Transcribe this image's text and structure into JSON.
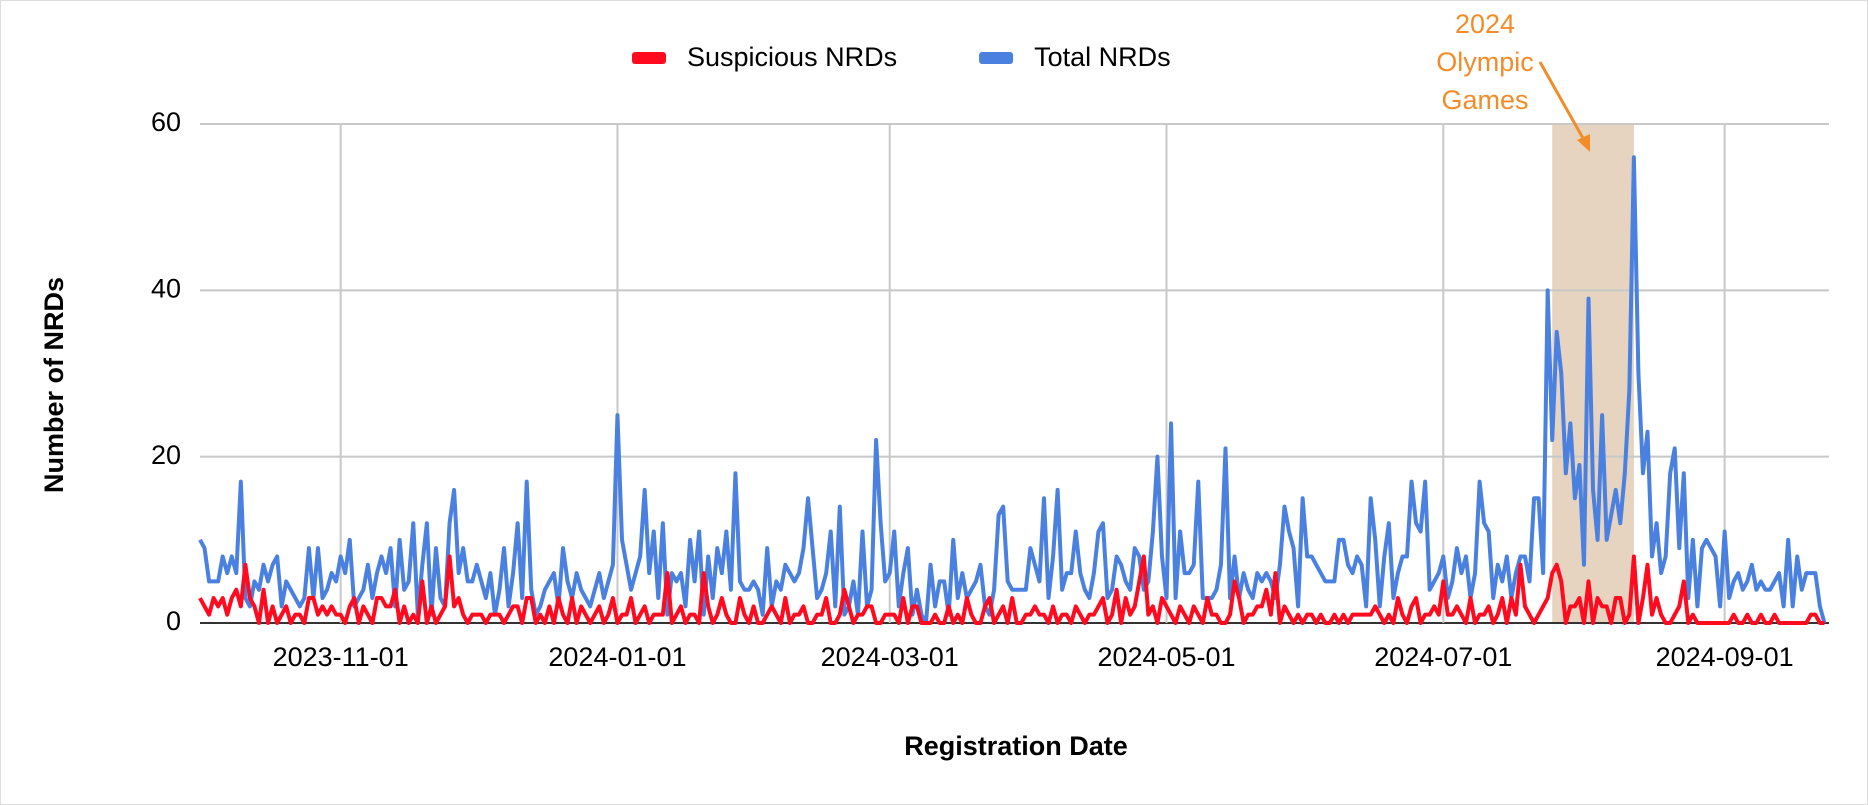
{
  "chart_data": {
    "type": "line",
    "y_label": "Number of NRDs",
    "x_label": "Registration Date",
    "legend": "top",
    "grid": true,
    "xlim": [
      "2023-10-01",
      "2024-09-24"
    ],
    "xticks": [
      "2023-11-01",
      "2024-01-01",
      "2024-03-01",
      "2024-05-01",
      "2024-07-01",
      "2024-09-01"
    ],
    "ylim": [
      0,
      60
    ],
    "yticks": [
      0,
      20,
      40,
      60
    ],
    "highlight": {
      "start": "2024-07-25",
      "end": "2024-08-12",
      "color": "#e6d3c0"
    },
    "annotation": {
      "lines": [
        "2024",
        "Olympic",
        "Games"
      ],
      "color": "#f28c28"
    },
    "x": [
      "2023-10-01",
      "2023-10-02",
      "2023-10-03",
      "2023-10-04",
      "2023-10-05",
      "2023-10-06",
      "2023-10-07",
      "2023-10-08",
      "2023-10-09",
      "2023-10-10",
      "2023-10-11",
      "2023-10-12",
      "2023-10-13",
      "2023-10-14",
      "2023-10-15",
      "2023-10-16",
      "2023-10-17",
      "2023-10-18",
      "2023-10-19",
      "2023-10-20",
      "2023-10-21",
      "2023-10-22",
      "2023-10-23",
      "2023-10-24",
      "2023-10-25",
      "2023-10-26",
      "2023-10-27",
      "2023-10-28",
      "2023-10-29",
      "2023-10-30",
      "2023-10-31",
      "2023-11-01",
      "2023-11-02",
      "2023-11-03",
      "2023-11-04",
      "2023-11-05",
      "2023-11-06",
      "2023-11-07",
      "2023-11-08",
      "2023-11-09",
      "2023-11-10",
      "2023-11-11",
      "2023-11-12",
      "2023-11-13",
      "2023-11-14",
      "2023-11-15",
      "2023-11-16",
      "2023-11-17",
      "2023-11-18",
      "2023-11-19",
      "2023-11-20",
      "2023-11-21",
      "2023-11-22",
      "2023-11-23",
      "2023-11-24",
      "2023-11-25",
      "2023-11-26",
      "2023-11-27",
      "2023-11-28",
      "2023-11-29",
      "2023-11-30",
      "2023-12-01",
      "2023-12-02",
      "2023-12-03",
      "2023-12-04",
      "2023-12-05",
      "2023-12-06",
      "2023-12-07",
      "2023-12-08",
      "2023-12-09",
      "2023-12-10",
      "2023-12-11",
      "2023-12-12",
      "2023-12-13",
      "2023-12-14",
      "2023-12-15",
      "2023-12-16",
      "2023-12-17",
      "2023-12-18",
      "2023-12-19",
      "2023-12-20",
      "2023-12-21",
      "2023-12-22",
      "2023-12-23",
      "2023-12-24",
      "2023-12-25",
      "2023-12-26",
      "2023-12-27",
      "2023-12-28",
      "2023-12-29",
      "2023-12-30",
      "2023-12-31",
      "2024-01-01",
      "2024-01-02",
      "2024-01-03",
      "2024-01-04",
      "2024-01-05",
      "2024-01-06",
      "2024-01-07",
      "2024-01-08",
      "2024-01-09",
      "2024-01-10",
      "2024-01-11",
      "2024-01-12",
      "2024-01-13",
      "2024-01-14",
      "2024-01-15",
      "2024-01-16",
      "2024-01-17",
      "2024-01-18",
      "2024-01-19",
      "2024-01-20",
      "2024-01-21",
      "2024-01-22",
      "2024-01-23",
      "2024-01-24",
      "2024-01-25",
      "2024-01-26",
      "2024-01-27",
      "2024-01-28",
      "2024-01-29",
      "2024-01-30",
      "2024-01-31",
      "2024-02-01",
      "2024-02-02",
      "2024-02-03",
      "2024-02-04",
      "2024-02-05",
      "2024-02-06",
      "2024-02-07",
      "2024-02-08",
      "2024-02-09",
      "2024-02-10",
      "2024-02-11",
      "2024-02-12",
      "2024-02-13",
      "2024-02-14",
      "2024-02-15",
      "2024-02-16",
      "2024-02-17",
      "2024-02-18",
      "2024-02-19",
      "2024-02-20",
      "2024-02-21",
      "2024-02-22",
      "2024-02-23",
      "2024-02-24",
      "2024-02-25",
      "2024-02-26",
      "2024-02-27",
      "2024-02-28",
      "2024-02-29",
      "2024-03-01",
      "2024-03-02",
      "2024-03-03",
      "2024-03-04",
      "2024-03-05",
      "2024-03-06",
      "2024-03-07",
      "2024-03-08",
      "2024-03-09",
      "2024-03-10",
      "2024-03-11",
      "2024-03-12",
      "2024-03-13",
      "2024-03-14",
      "2024-03-15",
      "2024-03-16",
      "2024-03-17",
      "2024-03-18",
      "2024-03-19",
      "2024-03-20",
      "2024-03-21",
      "2024-03-22",
      "2024-03-23",
      "2024-03-24",
      "2024-03-25",
      "2024-03-26",
      "2024-03-27",
      "2024-03-28",
      "2024-03-29",
      "2024-03-30",
      "2024-03-31",
      "2024-04-01",
      "2024-04-02",
      "2024-04-03",
      "2024-04-04",
      "2024-04-05",
      "2024-04-06",
      "2024-04-07",
      "2024-04-08",
      "2024-04-09",
      "2024-04-10",
      "2024-04-11",
      "2024-04-12",
      "2024-04-13",
      "2024-04-14",
      "2024-04-15",
      "2024-04-16",
      "2024-04-17",
      "2024-04-18",
      "2024-04-19",
      "2024-04-20",
      "2024-04-21",
      "2024-04-22",
      "2024-04-23",
      "2024-04-24",
      "2024-04-25",
      "2024-04-26",
      "2024-04-27",
      "2024-04-28",
      "2024-04-29",
      "2024-04-30",
      "2024-05-01",
      "2024-05-02",
      "2024-05-03",
      "2024-05-04",
      "2024-05-05",
      "2024-05-06",
      "2024-05-07",
      "2024-05-08",
      "2024-05-09",
      "2024-05-10",
      "2024-05-11",
      "2024-05-12",
      "2024-05-13",
      "2024-05-14",
      "2024-05-15",
      "2024-05-16",
      "2024-05-17",
      "2024-05-18",
      "2024-05-19",
      "2024-05-20",
      "2024-05-21",
      "2024-05-22",
      "2024-05-23",
      "2024-05-24",
      "2024-05-25",
      "2024-05-26",
      "2024-05-27",
      "2024-05-28",
      "2024-05-29",
      "2024-05-30",
      "2024-05-31",
      "2024-06-01",
      "2024-06-02",
      "2024-06-03",
      "2024-06-04",
      "2024-06-05",
      "2024-06-06",
      "2024-06-07",
      "2024-06-08",
      "2024-06-09",
      "2024-06-10",
      "2024-06-11",
      "2024-06-12",
      "2024-06-13",
      "2024-06-14",
      "2024-06-15",
      "2024-06-16",
      "2024-06-17",
      "2024-06-18",
      "2024-06-19",
      "2024-06-20",
      "2024-06-21",
      "2024-06-22",
      "2024-06-23",
      "2024-06-24",
      "2024-06-25",
      "2024-06-26",
      "2024-06-27",
      "2024-06-28",
      "2024-06-29",
      "2024-06-30",
      "2024-07-01",
      "2024-07-02",
      "2024-07-03",
      "2024-07-04",
      "2024-07-05",
      "2024-07-06",
      "2024-07-07",
      "2024-07-08",
      "2024-07-09",
      "2024-07-10",
      "2024-07-11",
      "2024-07-12",
      "2024-07-13",
      "2024-07-14",
      "2024-07-15",
      "2024-07-16",
      "2024-07-17",
      "2024-07-18",
      "2024-07-19",
      "2024-07-20",
      "2024-07-21",
      "2024-07-22",
      "2024-07-23",
      "2024-07-24",
      "2024-07-25",
      "2024-07-26",
      "2024-07-27",
      "2024-07-28",
      "2024-07-29",
      "2024-07-30",
      "2024-07-31",
      "2024-08-01",
      "2024-08-02",
      "2024-08-03",
      "2024-08-04",
      "2024-08-05",
      "2024-08-06",
      "2024-08-07",
      "2024-08-08",
      "2024-08-09",
      "2024-08-10",
      "2024-08-11",
      "2024-08-12",
      "2024-08-13",
      "2024-08-14",
      "2024-08-15",
      "2024-08-16",
      "2024-08-17",
      "2024-08-18",
      "2024-08-19",
      "2024-08-20",
      "2024-08-21",
      "2024-08-22",
      "2024-08-23",
      "2024-08-24",
      "2024-08-25",
      "2024-08-26",
      "2024-08-27",
      "2024-08-28",
      "2024-08-29",
      "2024-08-30",
      "2024-08-31",
      "2024-09-01",
      "2024-09-02",
      "2024-09-03",
      "2024-09-04",
      "2024-09-05",
      "2024-09-06",
      "2024-09-07",
      "2024-09-08",
      "2024-09-09",
      "2024-09-10",
      "2024-09-11",
      "2024-09-12",
      "2024-09-13",
      "2024-09-14",
      "2024-09-15",
      "2024-09-16",
      "2024-09-17",
      "2024-09-18",
      "2024-09-19",
      "2024-09-20",
      "2024-09-21",
      "2024-09-22",
      "2024-09-23"
    ],
    "series": [
      {
        "name": "Suspicious NRDs",
        "color": "#ff0a1e",
        "values": [
          3,
          2,
          1,
          3,
          2,
          3,
          1,
          3,
          4,
          2,
          7,
          3,
          2,
          0,
          4,
          0,
          2,
          0,
          1,
          2,
          0,
          1,
          1,
          0,
          3,
          3,
          1,
          2,
          1,
          2,
          1,
          1,
          0,
          2,
          3,
          0,
          2,
          1,
          0,
          3,
          3,
          2,
          2,
          4,
          0,
          2,
          0,
          1,
          0,
          5,
          0,
          2,
          0,
          1,
          2,
          8,
          2,
          3,
          1,
          0,
          1,
          1,
          1,
          0,
          1,
          1,
          1,
          0,
          1,
          2,
          2,
          0,
          3,
          3,
          0,
          1,
          0,
          2,
          0,
          3,
          1,
          0,
          3,
          0,
          2,
          1,
          0,
          1,
          2,
          0,
          1,
          3,
          0,
          1,
          1,
          3,
          0,
          1,
          2,
          0,
          1,
          1,
          1,
          6,
          0,
          1,
          2,
          0,
          1,
          1,
          0,
          6,
          2,
          0,
          1,
          3,
          1,
          0,
          0,
          3,
          1,
          0,
          2,
          0,
          0,
          1,
          2,
          1,
          0,
          3,
          0,
          1,
          1,
          2,
          0,
          0,
          1,
          1,
          3,
          0,
          0,
          1,
          4,
          2,
          0,
          1,
          1,
          2,
          2,
          0,
          0,
          1,
          1,
          1,
          0,
          3,
          0,
          2,
          2,
          0,
          0,
          0,
          1,
          0,
          0,
          2,
          0,
          1,
          0,
          3,
          1,
          0,
          0,
          2,
          3,
          0,
          1,
          2,
          0,
          3,
          0,
          0,
          1,
          1,
          2,
          1,
          1,
          0,
          2,
          0,
          1,
          1,
          0,
          2,
          1,
          0,
          1,
          1,
          2,
          3,
          0,
          1,
          4,
          0,
          3,
          1,
          2,
          5,
          8,
          1,
          2,
          0,
          3,
          2,
          1,
          0,
          2,
          1,
          0,
          2,
          1,
          0,
          3,
          1,
          1,
          0,
          0,
          1,
          5,
          3,
          0,
          1,
          1,
          2,
          2,
          4,
          1,
          6,
          0,
          2,
          1,
          0,
          1,
          0,
          1,
          1,
          0,
          1,
          0,
          0,
          1,
          0,
          1,
          0,
          1,
          1,
          1,
          1,
          1,
          2,
          1,
          0,
          1,
          0,
          3,
          1,
          0,
          2,
          3,
          0,
          1,
          1,
          2,
          1,
          5,
          1,
          1,
          2,
          1,
          0,
          3,
          0,
          1,
          1,
          2,
          0,
          1,
          3,
          0,
          3,
          1,
          7,
          2,
          1,
          0,
          1,
          2,
          3,
          6,
          7,
          5,
          0,
          2,
          2,
          3,
          0,
          5,
          0,
          3,
          2,
          2,
          0,
          3,
          3,
          0,
          1,
          8,
          0,
          3,
          7,
          1,
          3,
          1,
          0,
          0,
          1,
          2,
          5,
          0,
          1,
          0,
          0,
          0,
          0,
          0,
          0,
          0,
          0,
          1,
          0,
          0,
          1,
          0,
          0,
          1,
          0,
          0,
          1,
          0,
          0,
          0,
          0,
          0,
          0,
          0,
          1,
          1,
          0,
          0
        ]
      },
      {
        "name": "Total NRDs",
        "color": "#4a80e0",
        "values": [
          10,
          9,
          5,
          5,
          5,
          8,
          6,
          8,
          6,
          17,
          3,
          2,
          5,
          4,
          7,
          5,
          7,
          8,
          2,
          5,
          4,
          3,
          2,
          3,
          9,
          3,
          9,
          3,
          4,
          6,
          5,
          8,
          6,
          10,
          2,
          3,
          4,
          7,
          3,
          6,
          8,
          6,
          9,
          2,
          10,
          4,
          5,
          12,
          1,
          7,
          12,
          1,
          9,
          3,
          2,
          12,
          16,
          6,
          9,
          5,
          5,
          7,
          5,
          3,
          6,
          1,
          4,
          9,
          2,
          6,
          12,
          3,
          17,
          4,
          1,
          2,
          4,
          5,
          6,
          2,
          9,
          5,
          3,
          6,
          4,
          3,
          2,
          4,
          6,
          3,
          5,
          7,
          25,
          10,
          7,
          4,
          6,
          8,
          16,
          6,
          11,
          3,
          12,
          1,
          6,
          5,
          6,
          2,
          10,
          5,
          11,
          1,
          8,
          3,
          9,
          6,
          11,
          4,
          18,
          5,
          4,
          4,
          5,
          4,
          1,
          9,
          2,
          5,
          4,
          7,
          6,
          5,
          6,
          9,
          15,
          9,
          3,
          4,
          6,
          11,
          2,
          14,
          1,
          2,
          5,
          1,
          11,
          2,
          4,
          22,
          12,
          5,
          6,
          11,
          2,
          6,
          9,
          1,
          4,
          1,
          0,
          7,
          2,
          5,
          5,
          1,
          10,
          3,
          6,
          3,
          4,
          5,
          7,
          2,
          1,
          4,
          13,
          14,
          5,
          4,
          4,
          4,
          4,
          9,
          7,
          5,
          15,
          3,
          8,
          16,
          4,
          6,
          6,
          11,
          6,
          4,
          3,
          6,
          11,
          12,
          3,
          4,
          8,
          7,
          5,
          4,
          9,
          8,
          4,
          5,
          11,
          20,
          8,
          3,
          24,
          3,
          11,
          6,
          6,
          7,
          17,
          3,
          3,
          3,
          4,
          7,
          21,
          3,
          8,
          3,
          6,
          4,
          3,
          6,
          5,
          6,
          5,
          3,
          7,
          14,
          11,
          9,
          2,
          15,
          8,
          8,
          7,
          6,
          5,
          5,
          5,
          10,
          10,
          7,
          6,
          8,
          7,
          2,
          15,
          10,
          2,
          8,
          12,
          3,
          6,
          8,
          8,
          17,
          12,
          11,
          17,
          4,
          5,
          6,
          8,
          3,
          5,
          9,
          6,
          8,
          3,
          6,
          17,
          12,
          11,
          3,
          7,
          5,
          8,
          3,
          6,
          8,
          8,
          5,
          15,
          15,
          6,
          40,
          22,
          35,
          30,
          18,
          24,
          15,
          19,
          7,
          39,
          16,
          10,
          25,
          10,
          13,
          16,
          12,
          18,
          28,
          56,
          30,
          18,
          23,
          8,
          12,
          6,
          8,
          18,
          21,
          9,
          18,
          3,
          10,
          2,
          9,
          10,
          9,
          8,
          2,
          11,
          3,
          5,
          6,
          4,
          5,
          7,
          4,
          5,
          4,
          4,
          5,
          6,
          2,
          10,
          2,
          8,
          4,
          6,
          6,
          6,
          2,
          0
        ]
      }
    ]
  }
}
